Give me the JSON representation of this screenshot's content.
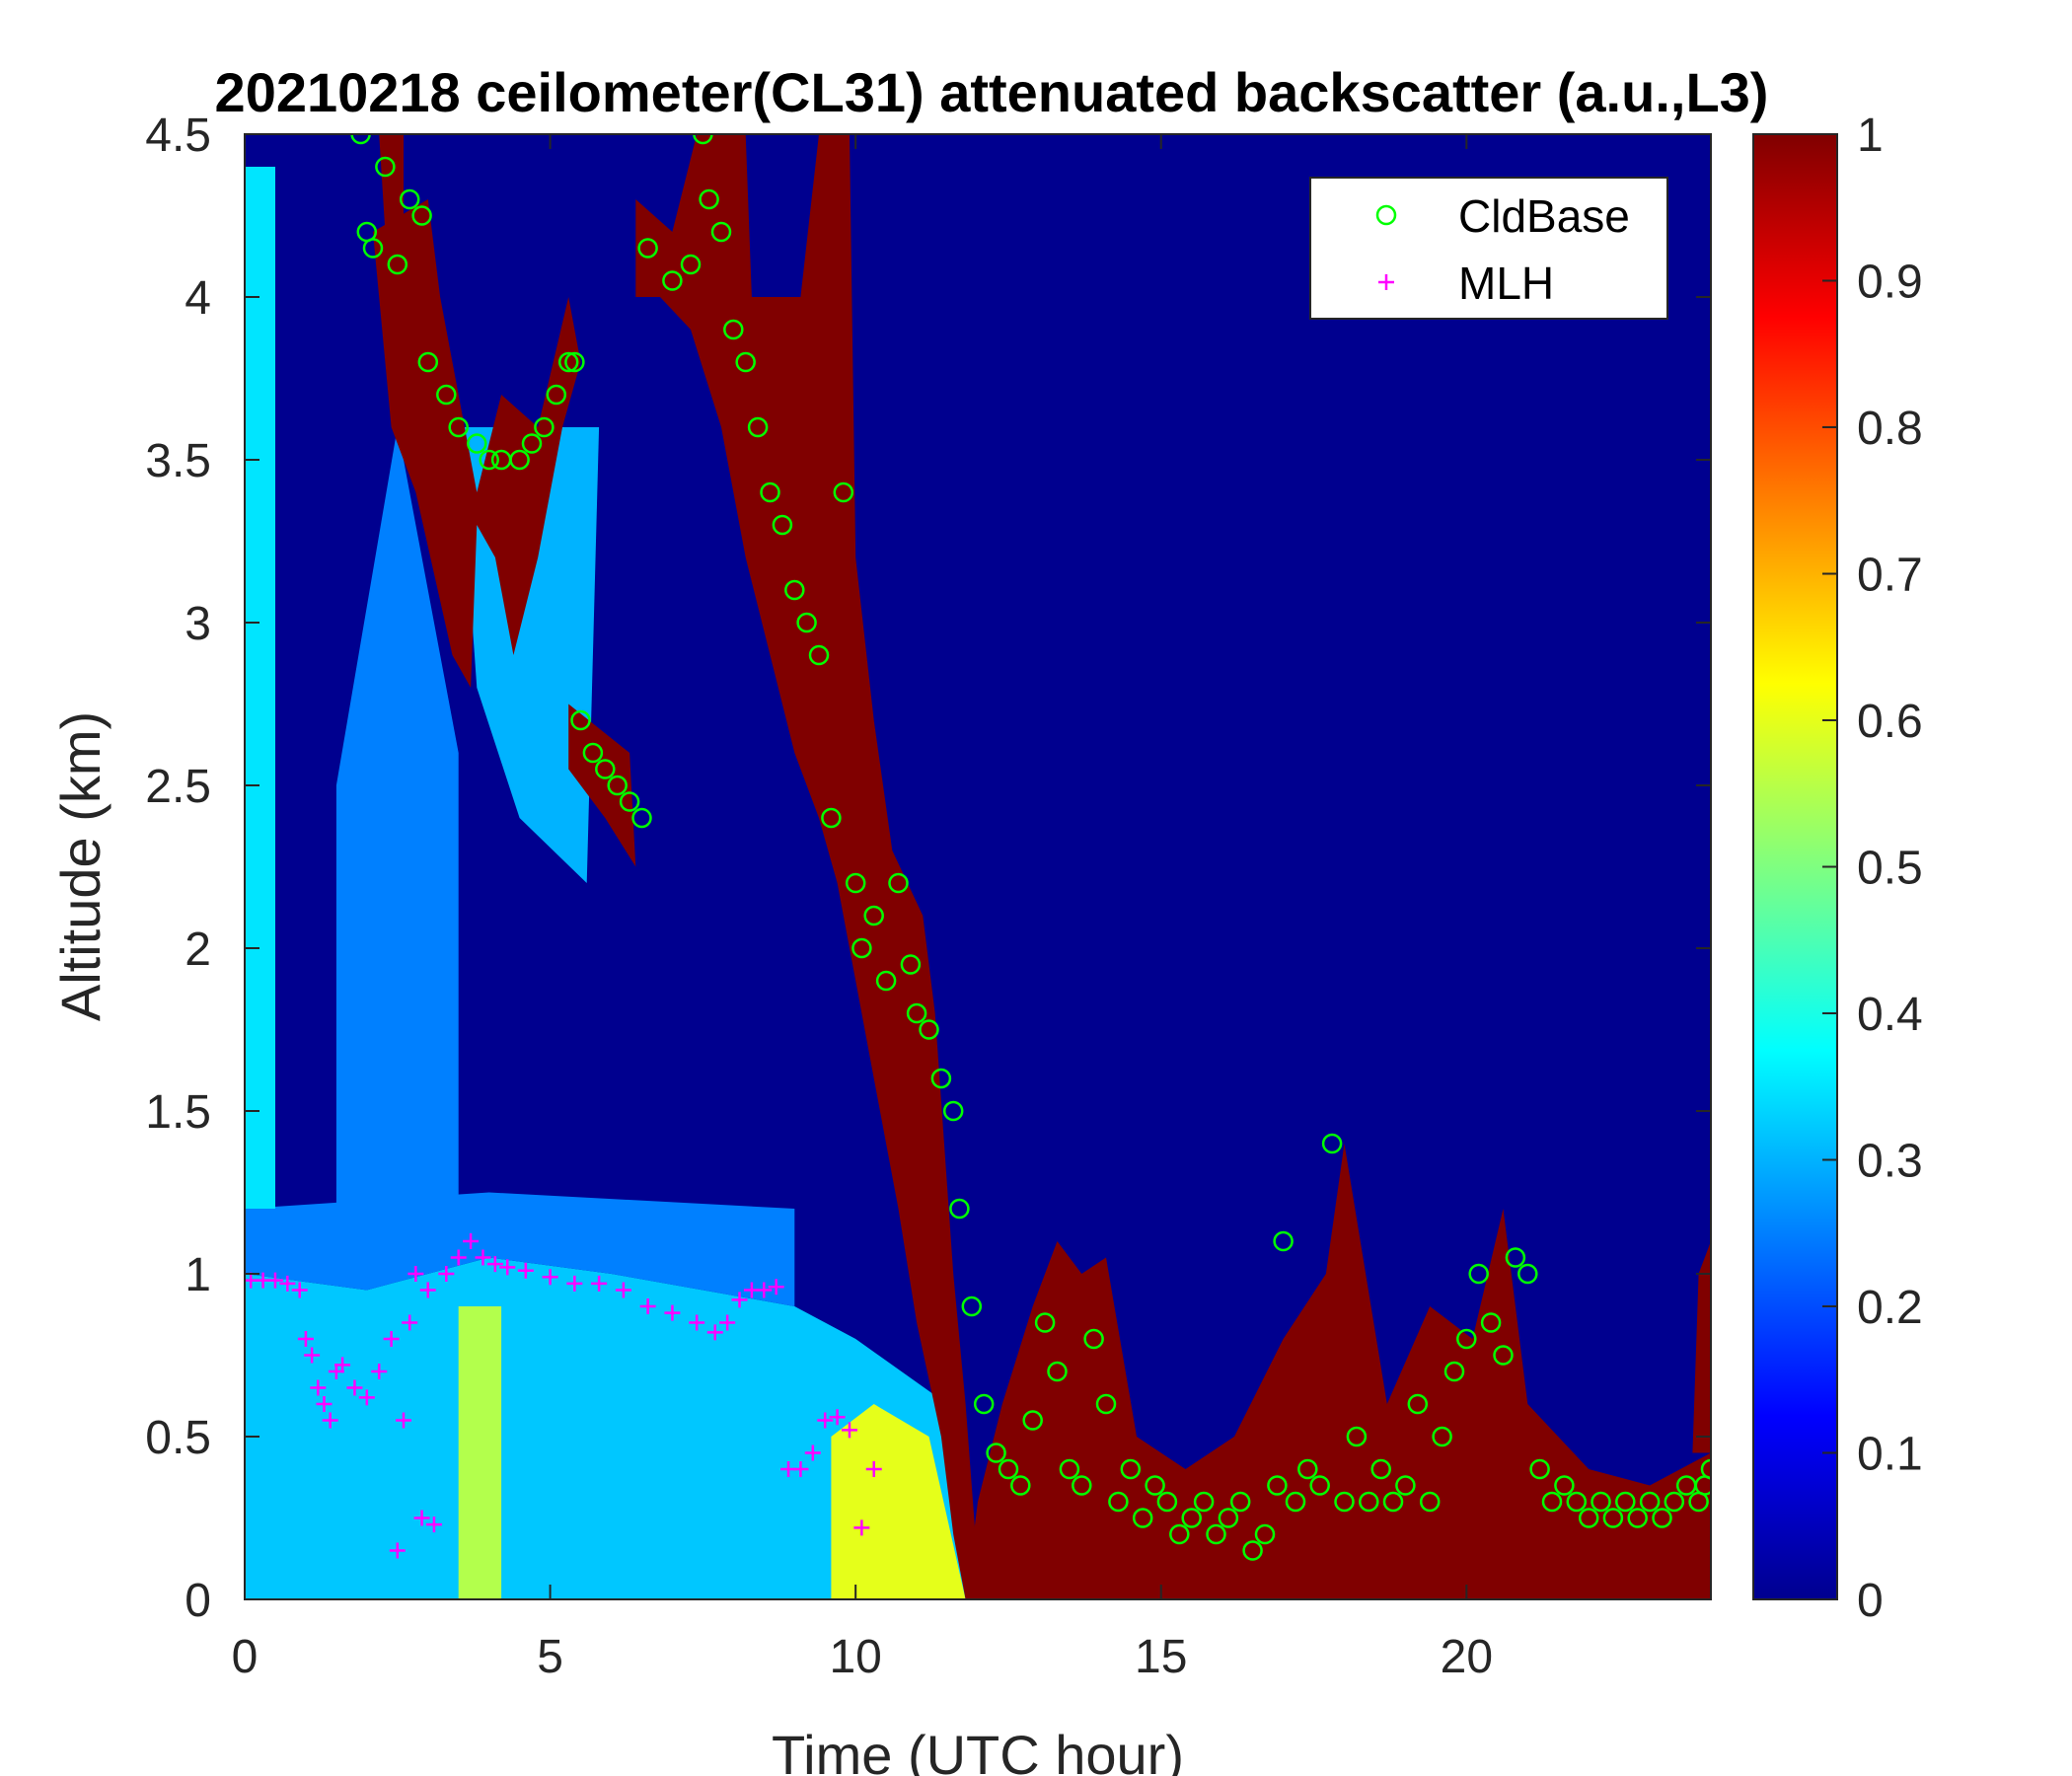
{
  "chart_data": {
    "type": "heatmap",
    "title": "20210218 ceilometer(CL31) attenuated backscatter (a.u.,L3)",
    "xlabel": "Time (UTC hour)",
    "ylabel": "Altitude (km)",
    "xlim": [
      0,
      24
    ],
    "ylim": [
      0,
      4.5
    ],
    "x_ticks": [
      "0",
      "5",
      "10",
      "15",
      "20"
    ],
    "x_tick_values": [
      0,
      5,
      10,
      15,
      20
    ],
    "y_ticks": [
      "0",
      "0.5",
      "1",
      "1.5",
      "2",
      "2.5",
      "3",
      "3.5",
      "4",
      "4.5"
    ],
    "y_tick_values": [
      0,
      0.5,
      1,
      1.5,
      2,
      2.5,
      3,
      3.5,
      4,
      4.5
    ],
    "colorbar": {
      "colormap": "jet",
      "range": [
        0,
        1
      ],
      "ticks": [
        "0",
        "0.1",
        "0.2",
        "0.3",
        "0.4",
        "0.5",
        "0.6",
        "0.7",
        "0.8",
        "0.9",
        "1"
      ],
      "tick_values": [
        0,
        0.1,
        0.2,
        0.3,
        0.4,
        0.5,
        0.6,
        0.7,
        0.8,
        0.9,
        1
      ]
    },
    "legend": {
      "placement": "top-right",
      "entries": [
        {
          "name": "CldBase",
          "marker": "circle",
          "color": "#00ff00"
        },
        {
          "name": "MLH",
          "marker": "plus",
          "color": "#ff00ff"
        }
      ]
    },
    "backscatter_regions": [
      {
        "level": 0.32,
        "points": [
          [
            0,
            0
          ],
          [
            11.8,
            0
          ],
          [
            11.5,
            0.6
          ],
          [
            10,
            0.8
          ],
          [
            9,
            0.9
          ],
          [
            6,
            1.0
          ],
          [
            4,
            1.05
          ],
          [
            2,
            0.95
          ],
          [
            0,
            1.0
          ]
        ]
      },
      {
        "level": 0.55,
        "points": [
          [
            3.5,
            0
          ],
          [
            4.2,
            0
          ],
          [
            4.2,
            0.9
          ],
          [
            3.5,
            0.9
          ]
        ]
      },
      {
        "level": 0.6,
        "points": [
          [
            9.6,
            0
          ],
          [
            11.8,
            0
          ],
          [
            11.2,
            0.5
          ],
          [
            10.3,
            0.6
          ],
          [
            9.6,
            0.5
          ]
        ]
      },
      {
        "level": 0.25,
        "points": [
          [
            0,
            1.0
          ],
          [
            2,
            0.95
          ],
          [
            4,
            1.05
          ],
          [
            6,
            1.0
          ],
          [
            9,
            0.9
          ],
          [
            9,
            1.2
          ],
          [
            4,
            1.25
          ],
          [
            0,
            1.2
          ]
        ]
      },
      {
        "level": 0.35,
        "points": [
          [
            0,
            1.2
          ],
          [
            0.5,
            1.2
          ],
          [
            0.5,
            4.4
          ],
          [
            0,
            4.4
          ]
        ]
      },
      {
        "level": 0.3,
        "points": [
          [
            3.5,
            3.6
          ],
          [
            5.8,
            3.6
          ],
          [
            5.6,
            2.2
          ],
          [
            4.5,
            2.4
          ],
          [
            3.8,
            2.8
          ]
        ]
      },
      {
        "level": 0.25,
        "points": [
          [
            1.5,
            1.2
          ],
          [
            3.5,
            1.2
          ],
          [
            3.5,
            2.6
          ],
          [
            2.5,
            3.6
          ],
          [
            1.5,
            2.5
          ]
        ]
      },
      {
        "level": 1.0,
        "points": [
          [
            1.6,
            4.5
          ],
          [
            2.6,
            4.5
          ],
          [
            2.6,
            4.2
          ],
          [
            2.3,
            4.2
          ],
          [
            2.2,
            4.5
          ]
        ]
      },
      {
        "level": 1.0,
        "points": [
          [
            2.1,
            4.2
          ],
          [
            3.0,
            4.3
          ],
          [
            3.2,
            4.0
          ],
          [
            3.6,
            3.6
          ],
          [
            3.8,
            3.4
          ],
          [
            4.2,
            3.7
          ],
          [
            4.8,
            3.6
          ],
          [
            5.3,
            4.0
          ],
          [
            5.5,
            3.8
          ],
          [
            5.2,
            3.6
          ],
          [
            4.8,
            3.2
          ],
          [
            4.4,
            2.9
          ],
          [
            4.1,
            3.2
          ],
          [
            3.8,
            3.3
          ],
          [
            3.7,
            2.8
          ],
          [
            3.4,
            2.9
          ],
          [
            2.8,
            3.4
          ],
          [
            2.4,
            3.6
          ],
          [
            2.2,
            4.0
          ]
        ]
      },
      {
        "level": 1.0,
        "points": [
          [
            5.3,
            2.75
          ],
          [
            6.3,
            2.6
          ],
          [
            6.4,
            2.25
          ],
          [
            5.9,
            2.4
          ],
          [
            5.3,
            2.55
          ]
        ]
      },
      {
        "level": 1.0,
        "points": [
          [
            6.4,
            4.3
          ],
          [
            7.0,
            4.2
          ],
          [
            7.4,
            4.5
          ],
          [
            8.2,
            4.5
          ],
          [
            8.3,
            4.0
          ],
          [
            9.1,
            4.0
          ],
          [
            9.4,
            4.5
          ],
          [
            9.9,
            4.5
          ],
          [
            10.0,
            3.2
          ],
          [
            10.3,
            2.7
          ],
          [
            10.6,
            2.3
          ],
          [
            11.1,
            2.1
          ],
          [
            11.3,
            1.8
          ],
          [
            11.6,
            1.0
          ],
          [
            11.8,
            0.6
          ],
          [
            12.0,
            0.1
          ],
          [
            12.0,
            0.0
          ],
          [
            11.8,
            0.0
          ],
          [
            11.6,
            0.2
          ],
          [
            11.4,
            0.5
          ],
          [
            11.0,
            0.85
          ],
          [
            10.7,
            1.2
          ],
          [
            10.3,
            1.6
          ],
          [
            10.0,
            1.9
          ],
          [
            9.7,
            2.2
          ],
          [
            9.4,
            2.4
          ],
          [
            9.0,
            2.6
          ],
          [
            8.6,
            2.9
          ],
          [
            8.2,
            3.2
          ],
          [
            7.8,
            3.6
          ],
          [
            7.3,
            3.9
          ],
          [
            6.8,
            4.0
          ],
          [
            6.4,
            4.0
          ]
        ]
      },
      {
        "level": 1.0,
        "points": [
          [
            11.8,
            0
          ],
          [
            24,
            0
          ],
          [
            24,
            0.45
          ],
          [
            23.0,
            0.35
          ],
          [
            22,
            0.4
          ],
          [
            21,
            0.6
          ],
          [
            20.6,
            1.2
          ],
          [
            20.1,
            0.8
          ],
          [
            19.4,
            0.9
          ],
          [
            18.7,
            0.6
          ],
          [
            18.0,
            1.4
          ],
          [
            17.7,
            1.0
          ],
          [
            17.0,
            0.8
          ],
          [
            16.2,
            0.5
          ],
          [
            15.4,
            0.4
          ],
          [
            14.6,
            0.5
          ],
          [
            14.1,
            1.05
          ],
          [
            13.7,
            1.0
          ],
          [
            13.3,
            1.1
          ],
          [
            12.9,
            0.9
          ],
          [
            12.4,
            0.6
          ],
          [
            12.0,
            0.3
          ]
        ]
      },
      {
        "level": 1.0,
        "points": [
          [
            23.7,
            0.45
          ],
          [
            24,
            0.45
          ],
          [
            24,
            1.1
          ],
          [
            23.8,
            1.0
          ]
        ]
      }
    ],
    "series": [
      {
        "name": "CldBase",
        "x": [
          1.9,
          2.0,
          2.1,
          2.3,
          2.5,
          2.7,
          2.9,
          3.0,
          3.3,
          3.5,
          3.8,
          4.0,
          4.2,
          4.5,
          4.7,
          4.9,
          5.1,
          5.3,
          5.4,
          5.5,
          5.7,
          5.9,
          6.1,
          6.3,
          6.5,
          6.6,
          7.0,
          7.3,
          7.5,
          7.6,
          7.8,
          8.0,
          8.2,
          8.4,
          8.6,
          8.8,
          9.0,
          9.2,
          9.4,
          9.6,
          9.8,
          10.0,
          10.1,
          10.3,
          10.5,
          10.7,
          10.9,
          11.0,
          11.2,
          11.4,
          11.6,
          11.7,
          11.9,
          12.1,
          12.3,
          12.5,
          12.7,
          12.9,
          13.1,
          13.3,
          13.5,
          13.7,
          13.9,
          14.1,
          14.3,
          14.5,
          14.7,
          14.9,
          15.1,
          15.3,
          15.5,
          15.7,
          15.9,
          16.1,
          16.3,
          16.5,
          16.7,
          16.9,
          17.0,
          17.2,
          17.4,
          17.6,
          17.8,
          18.0,
          18.2,
          18.4,
          18.6,
          18.8,
          19.0,
          19.2,
          19.4,
          19.6,
          19.8,
          20.0,
          20.2,
          20.4,
          20.6,
          20.8,
          21.0,
          21.2,
          21.4,
          21.6,
          21.8,
          22.0,
          22.2,
          22.4,
          22.6,
          22.8,
          23.0,
          23.2,
          23.4,
          23.6,
          23.8,
          23.9,
          24.0
        ],
        "y": [
          4.5,
          4.2,
          4.15,
          4.4,
          4.1,
          4.3,
          4.25,
          3.8,
          3.7,
          3.6,
          3.55,
          3.5,
          3.5,
          3.5,
          3.55,
          3.6,
          3.7,
          3.8,
          3.8,
          2.7,
          2.6,
          2.55,
          2.5,
          2.45,
          2.4,
          4.15,
          4.05,
          4.1,
          4.5,
          4.3,
          4.2,
          3.9,
          3.8,
          3.6,
          3.4,
          3.3,
          3.1,
          3.0,
          2.9,
          2.4,
          3.4,
          2.2,
          2.0,
          2.1,
          1.9,
          2.2,
          1.95,
          1.8,
          1.75,
          1.6,
          1.5,
          1.2,
          0.9,
          0.6,
          0.45,
          0.4,
          0.35,
          0.55,
          0.85,
          0.7,
          0.4,
          0.35,
          0.8,
          0.6,
          0.3,
          0.4,
          0.25,
          0.35,
          0.3,
          0.2,
          0.25,
          0.3,
          0.2,
          0.25,
          0.3,
          0.15,
          0.2,
          0.35,
          1.1,
          0.3,
          0.4,
          0.35,
          1.4,
          0.3,
          0.5,
          0.3,
          0.4,
          0.3,
          0.35,
          0.6,
          0.3,
          0.5,
          0.7,
          0.8,
          1.0,
          0.85,
          0.75,
          1.05,
          1.0,
          0.4,
          0.3,
          0.35,
          0.3,
          0.25,
          0.3,
          0.25,
          0.3,
          0.25,
          0.3,
          0.25,
          0.3,
          0.35,
          0.3,
          0.35,
          0.4
        ]
      },
      {
        "name": "MLH",
        "x": [
          0.1,
          0.3,
          0.5,
          0.7,
          0.9,
          1.0,
          1.1,
          1.2,
          1.3,
          1.4,
          1.5,
          1.6,
          1.8,
          2.0,
          2.2,
          2.4,
          2.5,
          2.6,
          2.7,
          2.8,
          2.9,
          3.0,
          3.1,
          3.3,
          3.5,
          3.7,
          3.9,
          4.1,
          4.3,
          4.6,
          5.0,
          5.4,
          5.8,
          6.2,
          6.6,
          7.0,
          7.4,
          7.7,
          7.9,
          8.1,
          8.3,
          8.5,
          8.7,
          8.9,
          9.1,
          9.3,
          9.5,
          9.7,
          9.9,
          10.1,
          10.3
        ],
        "y": [
          0.98,
          0.98,
          0.98,
          0.97,
          0.95,
          0.8,
          0.75,
          0.65,
          0.6,
          0.55,
          0.7,
          0.72,
          0.65,
          0.62,
          0.7,
          0.8,
          0.15,
          0.55,
          0.85,
          1.0,
          0.25,
          0.95,
          0.23,
          1.0,
          1.05,
          1.1,
          1.05,
          1.03,
          1.02,
          1.01,
          0.99,
          0.97,
          0.97,
          0.95,
          0.9,
          0.88,
          0.85,
          0.82,
          0.85,
          0.92,
          0.95,
          0.95,
          0.96,
          0.4,
          0.4,
          0.45,
          0.55,
          0.56,
          0.52,
          0.22,
          0.4
        ]
      }
    ]
  }
}
